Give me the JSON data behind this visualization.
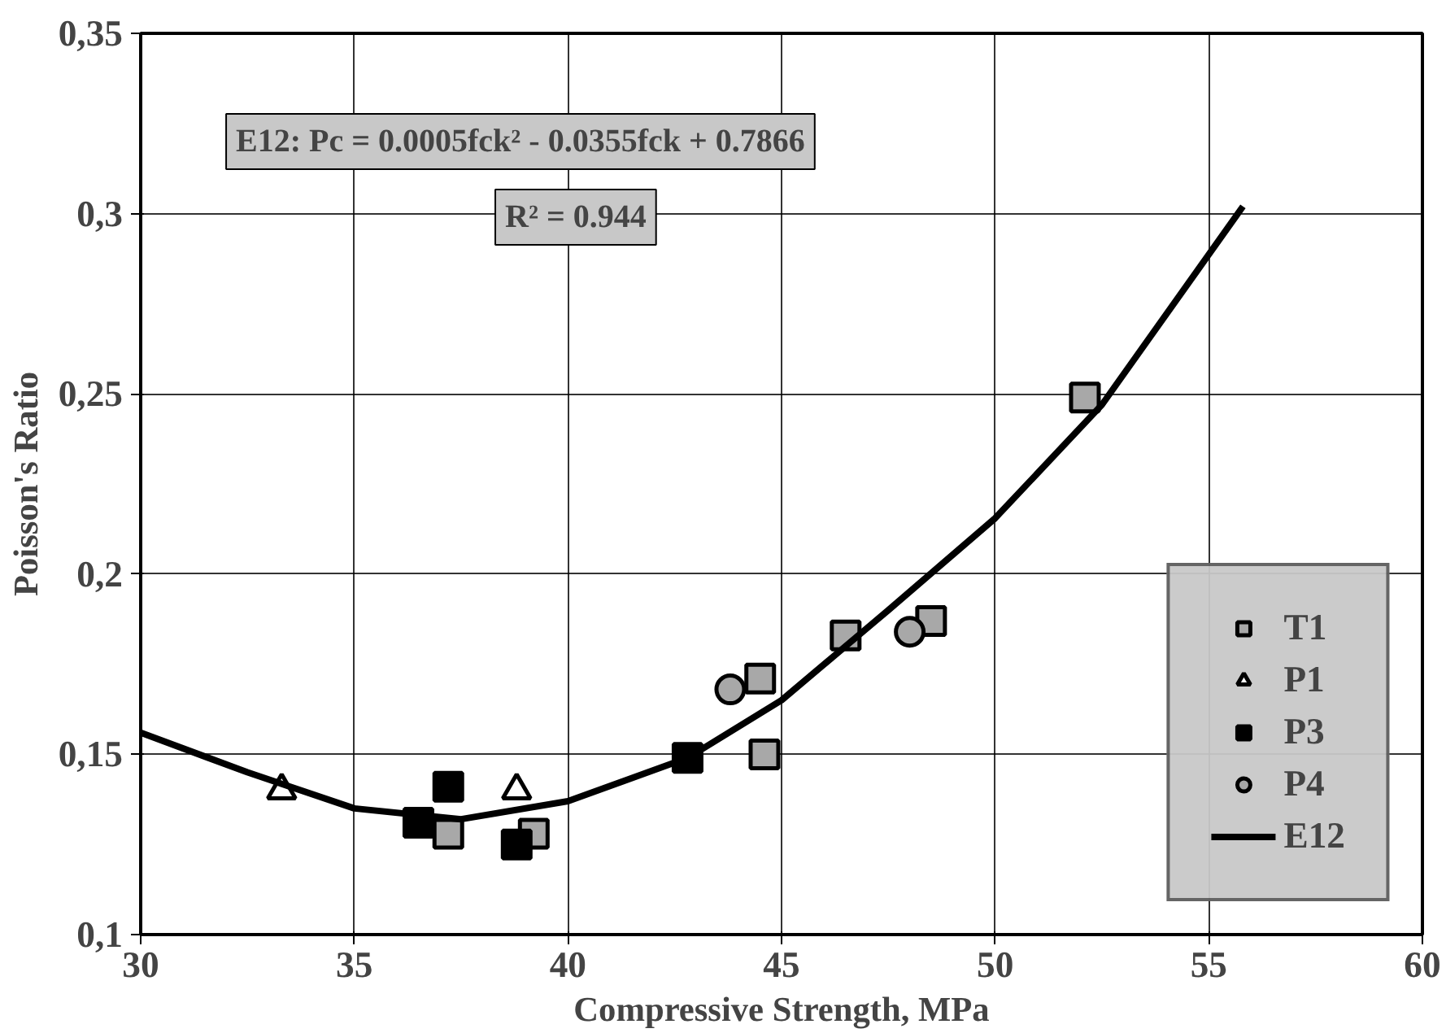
{
  "chart_data": {
    "type": "scatter",
    "xlabel": "Compressive Strength, MPa",
    "ylabel": "Poisson's Ratio",
    "xlim": [
      30,
      60
    ],
    "xticks": [
      30,
      35,
      40,
      45,
      50,
      55,
      60
    ],
    "ylim": [
      0.1,
      0.35
    ],
    "yticks": [
      {
        "value": 0.1,
        "label": "0,1"
      },
      {
        "value": 0.15,
        "label": "0,15"
      },
      {
        "value": 0.2,
        "label": "0,2"
      },
      {
        "value": 0.25,
        "label": "0,25"
      },
      {
        "value": 0.3,
        "label": "0,3"
      },
      {
        "value": 0.35,
        "label": "0,35"
      }
    ],
    "grid": true,
    "legend": "bottom right",
    "annotations": [
      "E12: Pc = 0.0005fck² - 0.0355fck + 0.7866",
      "R² = 0.944"
    ],
    "series": [
      {
        "name": "T1",
        "color": "#a8a8a8",
        "marker": "square",
        "x": [
          37.2,
          39.2,
          44.6,
          44.5,
          46.5,
          48.5,
          52.1
        ],
        "values": [
          0.128,
          0.128,
          0.15,
          0.171,
          0.183,
          0.187,
          0.249
        ]
      },
      {
        "name": "P1",
        "color": "#ffffff",
        "marker": "triangle",
        "x": [
          33.3,
          38.8
        ],
        "values": [
          0.14,
          0.14
        ]
      },
      {
        "name": "P3",
        "color": "#000000",
        "marker": "square",
        "x": [
          37.2,
          36.5,
          38.8,
          42.8
        ],
        "values": [
          0.141,
          0.131,
          0.125,
          0.149
        ]
      },
      {
        "name": "P4",
        "color": "#a8a8a8",
        "marker": "circle",
        "x": [
          43.8,
          48.0
        ],
        "values": [
          0.168,
          0.184
        ]
      },
      {
        "name": "E12",
        "type": "line",
        "color": "#000000",
        "marker": "none",
        "x": [
          30,
          32.5,
          35,
          37.5,
          40,
          42.8,
          45,
          47.5,
          50,
          52.5,
          55.8
        ],
        "values": [
          0.156,
          0.145,
          0.135,
          0.132,
          0.137,
          0.149,
          0.165,
          0.19,
          0.2155,
          0.247,
          0.302
        ]
      }
    ]
  }
}
